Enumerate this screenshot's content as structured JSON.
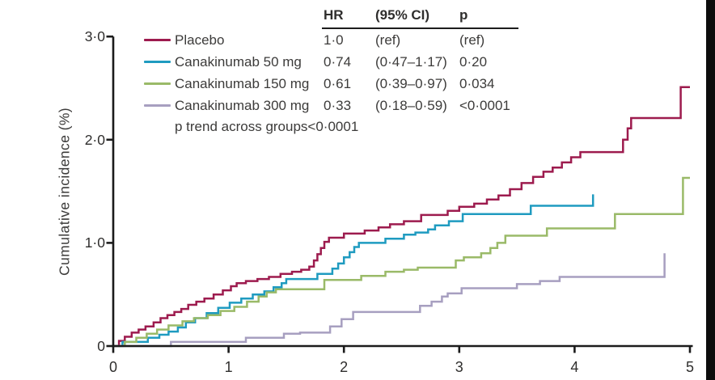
{
  "figure": {
    "background": "#ffffff",
    "right_edge_bar_color": "#0d0d0d"
  },
  "axis": {
    "line_color": "#1b1b1b",
    "text_color": "#2f2e2d",
    "y_tick_labels": [
      "0",
      "1·0",
      "2·0",
      "3·0"
    ],
    "y_tick_values": [
      0,
      1,
      2,
      3
    ],
    "x_tick_labels": [
      "0",
      "1",
      "2",
      "3",
      "4",
      "5"
    ],
    "x_tick_values": [
      0,
      1,
      2,
      3,
      4,
      5
    ]
  },
  "table": {
    "headers": {
      "hr": "HR",
      "ci": "(95% CI)",
      "p": "p"
    },
    "p_trend": "p trend across groups<0·0001"
  },
  "chart_data": {
    "type": "line",
    "subtype": "kaplan-meier-step",
    "title": "",
    "xlabel": "",
    "ylabel": "Cumulative incidence (%)",
    "xlim": [
      0,
      5
    ],
    "ylim": [
      0,
      3
    ],
    "grid": false,
    "legend_position": "top-left-inside",
    "series": [
      {
        "name": "Placebo",
        "hr": "1·0",
        "ci": "(ref)",
        "p": "(ref)",
        "color": "#9d1b4e",
        "points": [
          [
            0,
            0
          ],
          [
            0.05,
            0.05
          ],
          [
            0.1,
            0.09
          ],
          [
            0.16,
            0.13
          ],
          [
            0.22,
            0.16
          ],
          [
            0.28,
            0.19
          ],
          [
            0.35,
            0.23
          ],
          [
            0.41,
            0.27
          ],
          [
            0.47,
            0.3
          ],
          [
            0.53,
            0.33
          ],
          [
            0.59,
            0.36
          ],
          [
            0.65,
            0.4
          ],
          [
            0.72,
            0.43
          ],
          [
            0.79,
            0.46
          ],
          [
            0.87,
            0.5
          ],
          [
            0.95,
            0.54
          ],
          [
            1.02,
            0.58
          ],
          [
            1.07,
            0.61
          ],
          [
            1.15,
            0.63
          ],
          [
            1.25,
            0.65
          ],
          [
            1.35,
            0.67
          ],
          [
            1.45,
            0.7
          ],
          [
            1.55,
            0.72
          ],
          [
            1.63,
            0.74
          ],
          [
            1.7,
            0.77
          ],
          [
            1.74,
            0.83
          ],
          [
            1.77,
            0.89
          ],
          [
            1.8,
            0.95
          ],
          [
            1.83,
            1.01
          ],
          [
            1.87,
            1.05
          ],
          [
            2.0,
            1.09
          ],
          [
            2.18,
            1.12
          ],
          [
            2.3,
            1.15
          ],
          [
            2.4,
            1.18
          ],
          [
            2.52,
            1.21
          ],
          [
            2.67,
            1.27
          ],
          [
            2.9,
            1.31
          ],
          [
            3.0,
            1.35
          ],
          [
            3.13,
            1.38
          ],
          [
            3.24,
            1.42
          ],
          [
            3.34,
            1.46
          ],
          [
            3.44,
            1.52
          ],
          [
            3.54,
            1.58
          ],
          [
            3.64,
            1.64
          ],
          [
            3.73,
            1.69
          ],
          [
            3.81,
            1.73
          ],
          [
            3.89,
            1.78
          ],
          [
            3.97,
            1.83
          ],
          [
            4.05,
            1.88
          ],
          [
            4.42,
            2.0
          ],
          [
            4.46,
            2.11
          ],
          [
            4.49,
            2.21
          ],
          [
            4.92,
            2.51
          ],
          [
            5.0,
            2.51
          ]
        ]
      },
      {
        "name": "Canakinumab 50 mg",
        "hr": "0·74",
        "ci": "(0·47–1·17)",
        "p": "0·20",
        "color": "#1f9bc0",
        "points": [
          [
            0,
            0
          ],
          [
            0.08,
            0.04
          ],
          [
            0.3,
            0.08
          ],
          [
            0.4,
            0.11
          ],
          [
            0.48,
            0.14
          ],
          [
            0.56,
            0.18
          ],
          [
            0.63,
            0.23
          ],
          [
            0.71,
            0.27
          ],
          [
            0.81,
            0.32
          ],
          [
            0.91,
            0.37
          ],
          [
            1.01,
            0.42
          ],
          [
            1.11,
            0.46
          ],
          [
            1.21,
            0.5
          ],
          [
            1.31,
            0.53
          ],
          [
            1.39,
            0.57
          ],
          [
            1.46,
            0.61
          ],
          [
            1.5,
            0.65
          ],
          [
            1.77,
            0.7
          ],
          [
            1.9,
            0.75
          ],
          [
            1.95,
            0.8
          ],
          [
            2.0,
            0.86
          ],
          [
            2.05,
            0.91
          ],
          [
            2.09,
            0.96
          ],
          [
            2.13,
            1.0
          ],
          [
            2.36,
            1.04
          ],
          [
            2.52,
            1.08
          ],
          [
            2.62,
            1.1
          ],
          [
            2.73,
            1.13
          ],
          [
            2.79,
            1.17
          ],
          [
            2.91,
            1.21
          ],
          [
            3.03,
            1.28
          ],
          [
            3.62,
            1.36
          ],
          [
            4.16,
            1.47
          ]
        ]
      },
      {
        "name": "Canakinumab 150 mg",
        "hr": "0·61",
        "ci": "(0·39–0·97)",
        "p": "0·034",
        "color": "#9aba68",
        "points": [
          [
            0,
            0
          ],
          [
            0.1,
            0.04
          ],
          [
            0.2,
            0.08
          ],
          [
            0.29,
            0.12
          ],
          [
            0.38,
            0.16
          ],
          [
            0.48,
            0.2
          ],
          [
            0.6,
            0.24
          ],
          [
            0.7,
            0.27
          ],
          [
            0.82,
            0.3
          ],
          [
            0.93,
            0.34
          ],
          [
            1.05,
            0.38
          ],
          [
            1.16,
            0.43
          ],
          [
            1.26,
            0.48
          ],
          [
            1.33,
            0.52
          ],
          [
            1.41,
            0.55
          ],
          [
            1.83,
            0.64
          ],
          [
            2.15,
            0.68
          ],
          [
            2.36,
            0.72
          ],
          [
            2.52,
            0.74
          ],
          [
            2.64,
            0.76
          ],
          [
            2.97,
            0.83
          ],
          [
            3.04,
            0.86
          ],
          [
            3.19,
            0.9
          ],
          [
            3.27,
            0.95
          ],
          [
            3.33,
            1.0
          ],
          [
            3.4,
            1.07
          ],
          [
            3.76,
            1.14
          ],
          [
            4.35,
            1.28
          ],
          [
            4.94,
            1.63
          ],
          [
            5.0,
            1.63
          ]
        ]
      },
      {
        "name": "Canakinumab 300 mg",
        "hr": "0·33",
        "ci": "(0·18–0·59)",
        "p": "<0·0001",
        "color": "#a79fc0",
        "points": [
          [
            0,
            0
          ],
          [
            0.5,
            0.04
          ],
          [
            1.15,
            0.08
          ],
          [
            1.48,
            0.12
          ],
          [
            1.62,
            0.13
          ],
          [
            1.88,
            0.19
          ],
          [
            1.98,
            0.26
          ],
          [
            2.08,
            0.33
          ],
          [
            2.66,
            0.39
          ],
          [
            2.76,
            0.43
          ],
          [
            2.85,
            0.48
          ],
          [
            2.9,
            0.51
          ],
          [
            3.02,
            0.56
          ],
          [
            3.5,
            0.6
          ],
          [
            3.7,
            0.63
          ],
          [
            3.87,
            0.67
          ],
          [
            4.78,
            0.9
          ]
        ]
      }
    ]
  }
}
